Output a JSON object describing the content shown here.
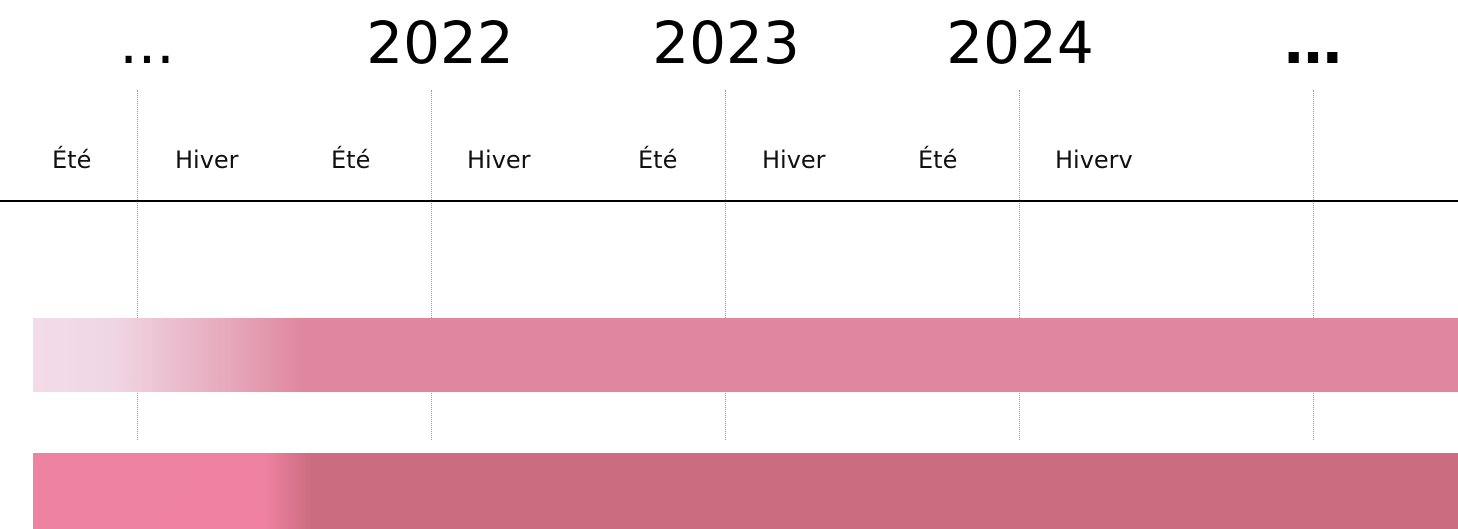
{
  "timeline": {
    "years": [
      "...",
      "2022",
      "2023",
      "2024",
      "…"
    ],
    "seasons": [
      "Été",
      "Hiver",
      "Été",
      "Hiver",
      "Été",
      "Hiver",
      "Été",
      "Hiverv"
    ]
  }
}
